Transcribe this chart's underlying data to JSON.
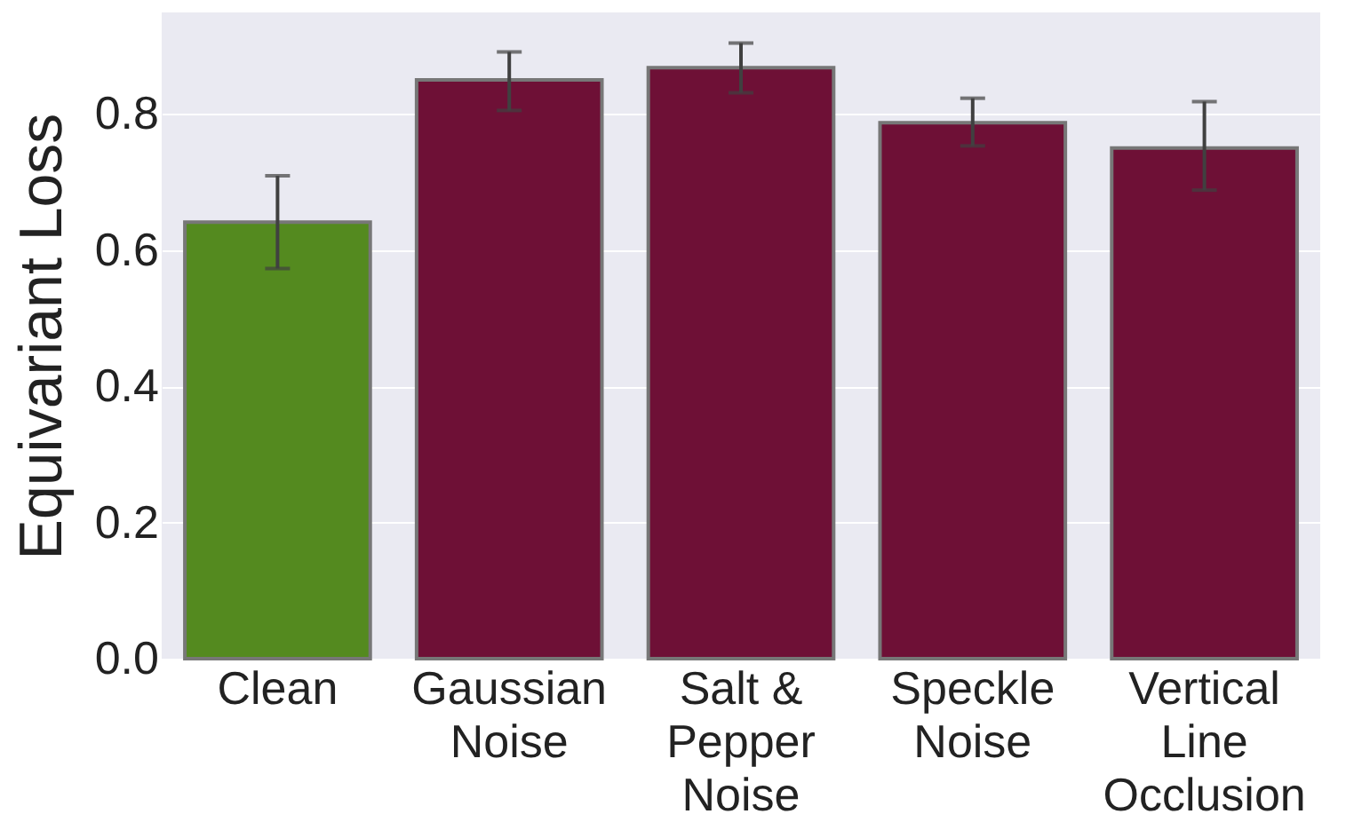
{
  "chart_data": {
    "type": "bar",
    "ylabel": "Equivariant Loss",
    "categories": [
      "Clean",
      "Gaussian\nNoise",
      "Salt &\nPepper\nNoise",
      "Speckle\nNoise",
      "Vertical\nLine\nOcclusion"
    ],
    "values": [
      0.641,
      0.85,
      0.868,
      0.787,
      0.75
    ],
    "colors": [
      "#548a1f",
      "#6e1036",
      "#6e1036",
      "#6e1036",
      "#6e1036"
    ],
    "errors": [
      [
        0.573,
        0.709
      ],
      [
        0.805,
        0.891
      ],
      [
        0.831,
        0.904
      ],
      [
        0.753,
        0.823
      ],
      [
        0.688,
        0.818
      ]
    ],
    "ylim": [
      0,
      0.949
    ],
    "yticks": [
      {
        "value": 0,
        "label": "0.0"
      },
      {
        "value": 0.2,
        "label": "0.2"
      },
      {
        "value": 0.4,
        "label": "0.4"
      },
      {
        "value": 0.6,
        "label": "0.6"
      },
      {
        "value": 0.8,
        "label": "0.8"
      }
    ],
    "grid": "y"
  }
}
